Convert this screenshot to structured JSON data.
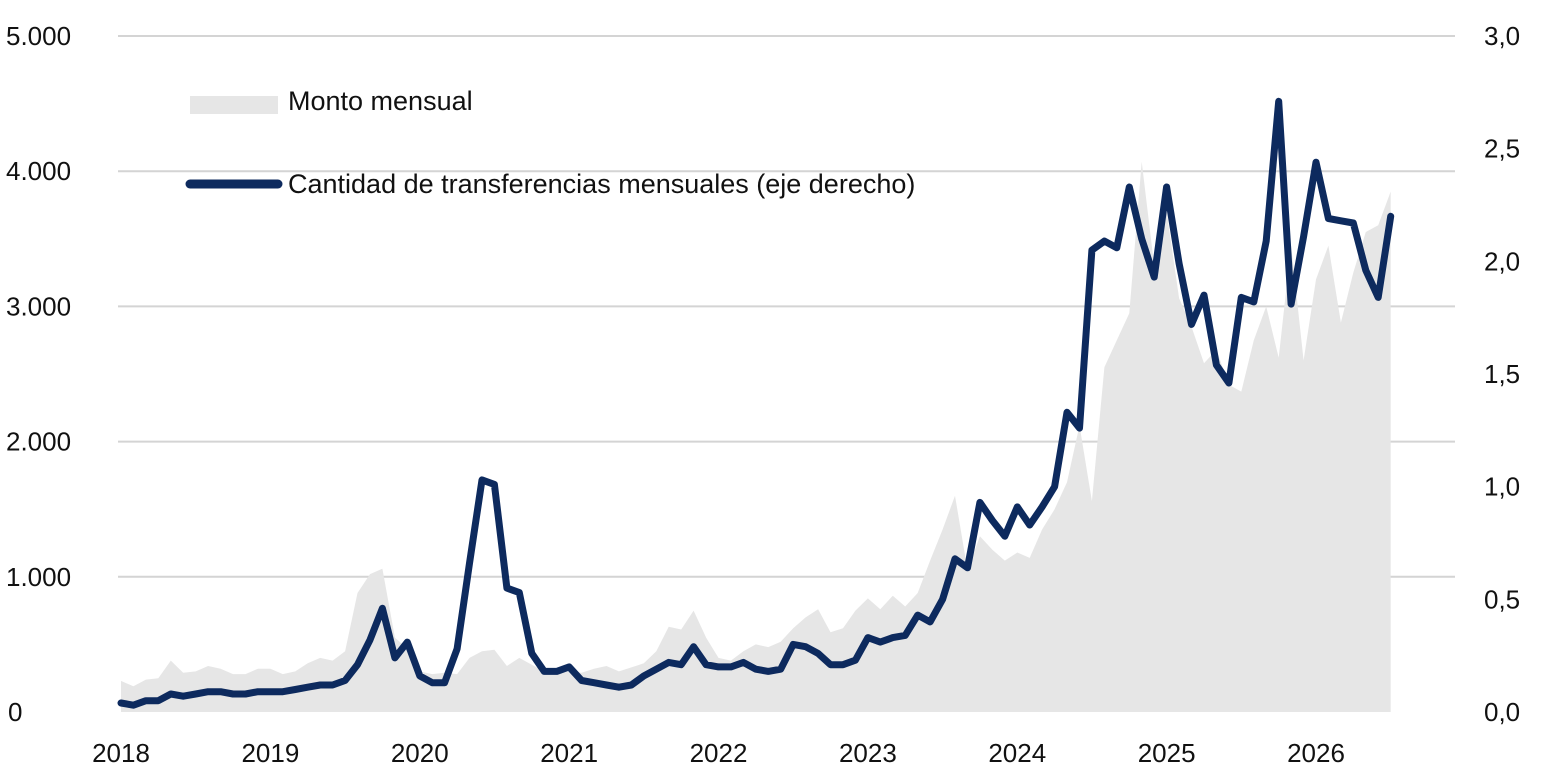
{
  "chart_data": {
    "type": "area+line",
    "title": "",
    "xlabel": "",
    "ylabel": "",
    "x_ticks": [
      "2018",
      "2019",
      "2020",
      "2021",
      "2022",
      "2023",
      "2024",
      "2025",
      "2026"
    ],
    "y_left": {
      "range": [
        0,
        5000
      ],
      "ticks": [
        "0",
        "1.000",
        "2.000",
        "3.000",
        "4.000",
        "5.000"
      ]
    },
    "y_right": {
      "range": [
        0,
        3.0
      ],
      "ticks": [
        "0,0",
        "0,5",
        "1,0",
        "1,5",
        "2,0",
        "2,5",
        "3,0"
      ]
    },
    "grid": "horizontal",
    "legend_placement": "top-left",
    "colors": {
      "area": "#e6e6e6",
      "line": "#0d2a5e",
      "grid": "#d4d4d4"
    },
    "x": [
      "2018-01",
      "2018-02",
      "2018-03",
      "2018-04",
      "2018-05",
      "2018-06",
      "2018-07",
      "2018-08",
      "2018-09",
      "2018-10",
      "2018-11",
      "2018-12",
      "2019-01",
      "2019-02",
      "2019-03",
      "2019-04",
      "2019-05",
      "2019-06",
      "2019-07",
      "2019-08",
      "2019-09",
      "2019-10",
      "2019-11",
      "2019-12",
      "2020-01",
      "2020-02",
      "2020-03",
      "2020-04",
      "2020-05",
      "2020-06",
      "2020-07",
      "2020-08",
      "2020-09",
      "2020-10",
      "2020-11",
      "2020-12",
      "2021-01",
      "2021-02",
      "2021-03",
      "2021-04",
      "2021-05",
      "2021-06",
      "2021-07",
      "2021-08",
      "2021-09",
      "2021-10",
      "2021-11",
      "2021-12",
      "2022-01",
      "2022-02",
      "2022-03",
      "2022-04",
      "2022-05",
      "2022-06",
      "2022-07",
      "2022-08",
      "2022-09",
      "2022-10",
      "2022-11",
      "2022-12",
      "2023-01",
      "2023-02",
      "2023-03",
      "2023-04",
      "2023-05",
      "2023-06",
      "2023-07",
      "2023-08",
      "2023-09",
      "2023-10",
      "2023-11",
      "2023-12",
      "2024-01",
      "2024-02",
      "2024-03",
      "2024-04",
      "2024-05",
      "2024-06",
      "2024-07",
      "2024-08",
      "2024-09",
      "2024-10",
      "2024-11",
      "2024-12",
      "2025-01",
      "2025-02",
      "2025-03",
      "2025-04",
      "2025-05",
      "2025-06",
      "2025-07",
      "2025-08",
      "2025-09",
      "2025-10",
      "2025-11",
      "2025-12",
      "2026-01",
      "2026-02",
      "2026-03",
      "2026-04",
      "2026-05",
      "2026-06",
      "2026-07"
    ],
    "series": [
      {
        "name": "Monto mensual",
        "axis": "left",
        "kind": "area",
        "values": [
          230,
          190,
          240,
          250,
          380,
          290,
          300,
          340,
          320,
          280,
          280,
          320,
          320,
          280,
          300,
          360,
          400,
          380,
          450,
          880,
          1020,
          1060,
          550,
          470,
          300,
          280,
          290,
          280,
          400,
          450,
          460,
          340,
          400,
          350,
          300,
          290,
          300,
          290,
          320,
          340,
          300,
          330,
          360,
          450,
          630,
          610,
          750,
          550,
          400,
          380,
          450,
          500,
          480,
          520,
          620,
          700,
          760,
          590,
          620,
          750,
          840,
          760,
          860,
          780,
          880,
          1120,
          1350,
          1600,
          1050,
          1300,
          1200,
          1120,
          1180,
          1140,
          1350,
          1500,
          1700,
          2120,
          1560,
          2550,
          2750,
          2950,
          4070,
          3300,
          3700,
          3060,
          2850,
          2580,
          2680,
          2420,
          2370,
          2750,
          3000,
          2620,
          3450,
          2600,
          3200,
          3450,
          2880,
          3250,
          3550,
          3600,
          3850
        ]
      },
      {
        "name": "Cantidad de transferencias mensuales (eje derecho)",
        "axis": "right",
        "kind": "line",
        "values": [
          0.04,
          0.03,
          0.05,
          0.05,
          0.08,
          0.07,
          0.08,
          0.09,
          0.09,
          0.08,
          0.08,
          0.09,
          0.09,
          0.09,
          0.1,
          0.11,
          0.12,
          0.12,
          0.14,
          0.21,
          0.32,
          0.46,
          0.24,
          0.31,
          0.16,
          0.13,
          0.13,
          0.28,
          0.66,
          1.03,
          1.01,
          0.55,
          0.53,
          0.26,
          0.18,
          0.18,
          0.2,
          0.14,
          0.13,
          0.12,
          0.11,
          0.12,
          0.16,
          0.19,
          0.22,
          0.21,
          0.29,
          0.21,
          0.2,
          0.2,
          0.22,
          0.19,
          0.18,
          0.19,
          0.3,
          0.29,
          0.26,
          0.21,
          0.21,
          0.23,
          0.33,
          0.31,
          0.33,
          0.34,
          0.43,
          0.4,
          0.5,
          0.68,
          0.64,
          0.93,
          0.85,
          0.78,
          0.91,
          0.83,
          0.91,
          1.0,
          1.33,
          1.26,
          2.05,
          2.09,
          2.06,
          2.33,
          2.1,
          1.93,
          2.33,
          1.99,
          1.72,
          1.85,
          1.54,
          1.46,
          1.84,
          1.82,
          2.09,
          2.71,
          1.81,
          2.11,
          2.44,
          2.19,
          2.18,
          2.17,
          1.96,
          1.84,
          2.2
        ]
      }
    ]
  }
}
